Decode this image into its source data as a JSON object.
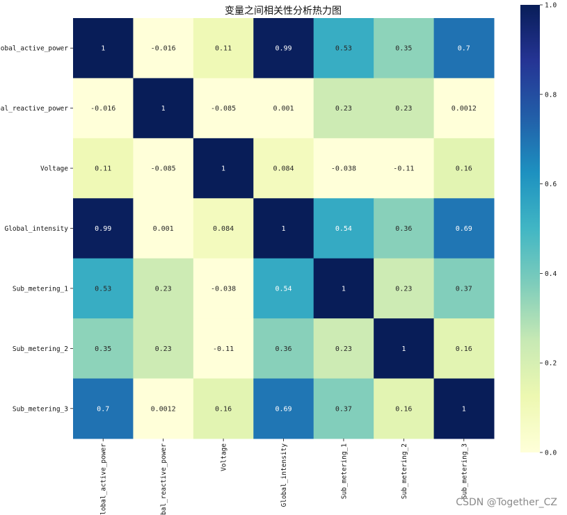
{
  "chart_data": {
    "type": "heatmap",
    "title": "变量之间相关性分析热力图",
    "labels": [
      "Global_active_power",
      "Global_reactive_power",
      "Voltage",
      "Global_intensity",
      "Sub_metering_1",
      "Sub_metering_2",
      "Sub_metering_3"
    ],
    "values": [
      [
        1,
        -0.016,
        0.11,
        0.99,
        0.53,
        0.35,
        0.7
      ],
      [
        -0.016,
        1,
        -0.085,
        0.001,
        0.23,
        0.23,
        0.0012
      ],
      [
        0.11,
        -0.085,
        1,
        0.084,
        -0.038,
        -0.11,
        0.16
      ],
      [
        0.99,
        0.001,
        0.084,
        1,
        0.54,
        0.36,
        0.69
      ],
      [
        0.53,
        0.23,
        -0.038,
        0.54,
        1,
        0.23,
        0.37
      ],
      [
        0.35,
        0.23,
        -0.11,
        0.36,
        0.23,
        1,
        0.16
      ],
      [
        0.7,
        0.0012,
        0.16,
        0.69,
        0.37,
        0.16,
        1
      ]
    ],
    "cell_text": [
      [
        "1",
        "-0.016",
        "0.11",
        "0.99",
        "0.53",
        "0.35",
        "0.7"
      ],
      [
        "-0.016",
        "1",
        "-0.085",
        "0.001",
        "0.23",
        "0.23",
        "0.0012"
      ],
      [
        "0.11",
        "-0.085",
        "1",
        "0.084",
        "-0.038",
        "-0.11",
        "0.16"
      ],
      [
        "0.99",
        "0.001",
        "0.084",
        "1",
        "0.54",
        "0.36",
        "0.69"
      ],
      [
        "0.53",
        "0.23",
        "-0.038",
        "0.54",
        "1",
        "0.23",
        "0.37"
      ],
      [
        "0.35",
        "0.23",
        "-0.11",
        "0.36",
        "0.23",
        "1",
        "0.16"
      ],
      [
        "0.7",
        "0.0012",
        "0.16",
        "0.69",
        "0.37",
        "0.16",
        "1"
      ]
    ],
    "colormap": "YlGnBu",
    "vmin": 0,
    "vmax": 1,
    "colorbar_ticks": [
      "0.0",
      "0.2",
      "0.4",
      "0.6",
      "0.8",
      "1.0"
    ],
    "colorbar_tick_values": [
      0,
      0.2,
      0.4,
      0.6,
      0.8,
      1.0
    ]
  },
  "watermark": "CSDN @Together_CZ"
}
